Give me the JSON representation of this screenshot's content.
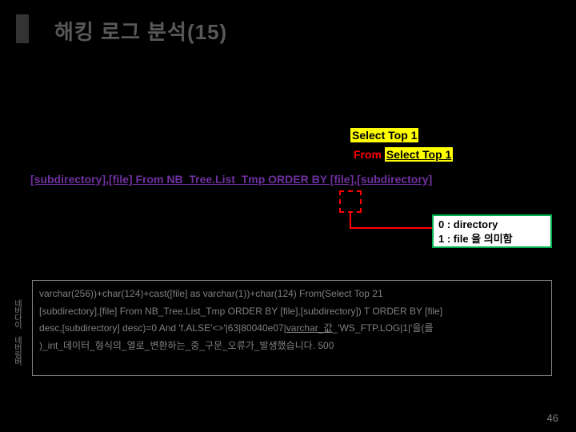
{
  "title": "해킹 로그 분석(15)",
  "colors": {
    "background": "#000000",
    "title": "#585858",
    "highlight_bg": "#ffff00",
    "highlight_text": "#000000",
    "from_text": "#ff0000",
    "purple": "#7030a0",
    "green_border": "#00b050",
    "code_text": "#808080",
    "dashed_border": "#ff0000"
  },
  "yellow1": "Select Top 1",
  "yellow2_from": "From ",
  "yellow2_sel": "Select Top 1",
  "purple_line": "[subdirectory],[file] From NB_Tree.List_Tmp ORDER BY [file],[subdirectory]",
  "green_box_line1": "0 : directory",
  "green_box_line2": "1 : file 을 의미함",
  "code_line1": "varchar(256))+char(124)+cast([file] as varchar(1))+char(124) From(Select Top 21",
  "code_line2": "[subdirectory],[file] From NB_Tree.List_Tmp ORDER BY [file],[subdirectory]) T ORDER BY [file]",
  "code_line3_a": "desc,[subdirectory] desc)=0 And 'f.ALSE'<>'|63|80040e07|",
  "code_line3_b": "varchar_값",
  "code_line3_c": "_'WS_FTP.LOG|1|'을(를",
  "code_line4": ")_int_데이터_형식의_열로_변환하는_중_구문_오류가_발생했습니다. 500",
  "side_label": "네버다이 네버림버",
  "page_number": "46"
}
